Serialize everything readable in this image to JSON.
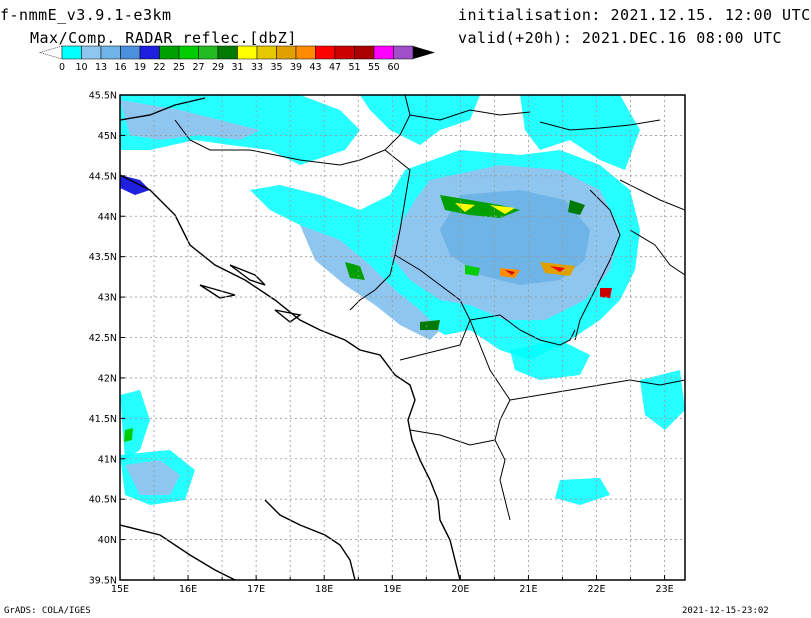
{
  "header": {
    "model": "f-nmmE_v3.9.1-e3km",
    "subtitle": "Max/Comp. RADAR reflec.[dbZ]",
    "initialisation": "initialisation: 2021.12.15. 12:00 UTC",
    "valid": "valid(+20h): 2021.DEC.16 08:00 UTC"
  },
  "colorbar": {
    "labels": [
      "0",
      "10",
      "13",
      "16",
      "19",
      "22",
      "25",
      "27",
      "29",
      "31",
      "33",
      "35",
      "39",
      "43",
      "47",
      "51",
      "55",
      "60"
    ],
    "colors": [
      "#00ffff",
      "#8fc6f0",
      "#6fb4e6",
      "#4c8fdc",
      "#1f1fe0",
      "#00a000",
      "#00cc00",
      "#22bb22",
      "#007a00",
      "#ffff00",
      "#e6c800",
      "#e0a000",
      "#ff8c00",
      "#ff0000",
      "#cc0000",
      "#aa0000",
      "#ff00ff",
      "#9f4fc8",
      "#000000"
    ]
  },
  "map": {
    "lat_labels": [
      "45.5N",
      "45N",
      "44.5N",
      "44N",
      "43.5N",
      "43N",
      "42.5N",
      "42N",
      "41.5N",
      "41N",
      "40.5N",
      "40N",
      "39.5N"
    ],
    "lon_labels": [
      "15E",
      "16E",
      "17E",
      "18E",
      "19E",
      "20E",
      "21E",
      "22E",
      "23E"
    ]
  },
  "footer": {
    "credit": "GrADS: COLA/IGES",
    "timestamp": "2021-12-15-23:02"
  }
}
